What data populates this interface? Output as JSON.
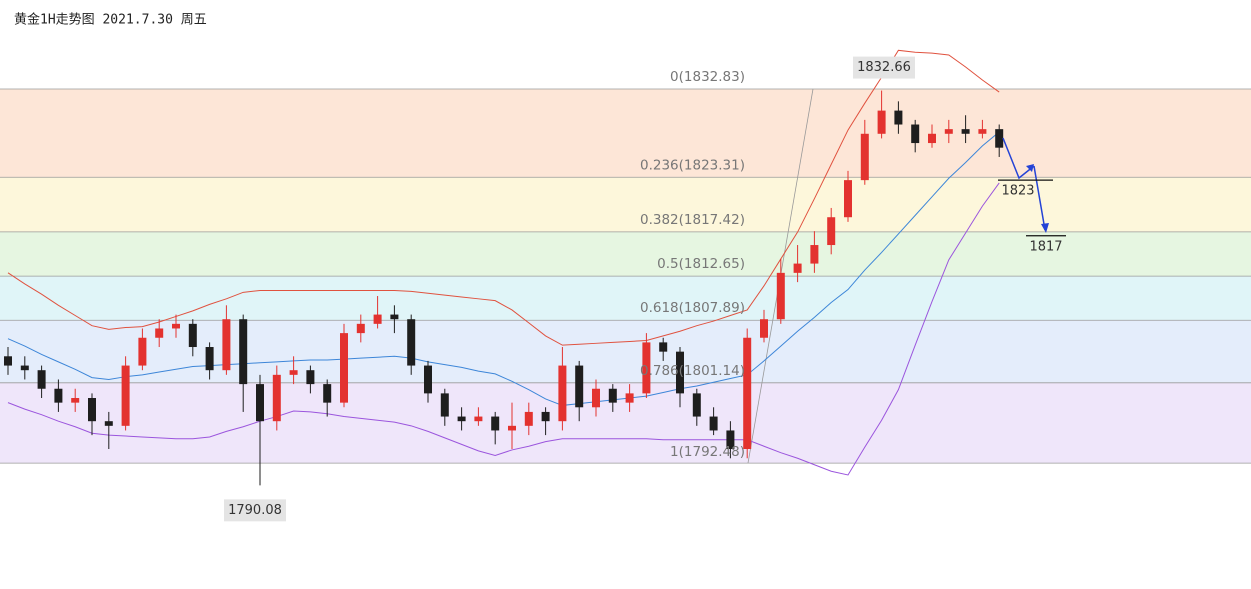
{
  "chart_data": {
    "type": "candlestick",
    "title": "黄金1H走势图 2021.7.30 周五",
    "ylim": [
      1778.9,
      1842.43
    ],
    "up_color": "#e3322f",
    "down_color": "#1e1e1e",
    "open": [
      1804,
      1803,
      1802.5,
      1800.5,
      1799,
      1799.5,
      1797,
      1796.5,
      1803,
      1806,
      1807,
      1807.5,
      1805,
      1802.5,
      1808,
      1801,
      1797,
      1802,
      1802.5,
      1801,
      1799,
      1806.5,
      1807.5,
      1808.5,
      1808,
      1803,
      1800,
      1797.5,
      1797,
      1797.5,
      1796,
      1796.5,
      1798,
      1797,
      1803,
      1798.5,
      1800.5,
      1799,
      1800,
      1805.5,
      1804.5,
      1800,
      1797.5,
      1796,
      1794,
      1806,
      1808,
      1813,
      1814,
      1816,
      1819,
      1823,
      1828,
      1830.5,
      1829,
      1827,
      1828,
      1828.5,
      1828,
      1828.5
    ],
    "high": [
      1805,
      1804,
      1803,
      1801.5,
      1800.5,
      1800,
      1798,
      1804,
      1807,
      1808,
      1808.5,
      1808,
      1805.5,
      1809.5,
      1808.5,
      1802,
      1803,
      1804,
      1803,
      1801.5,
      1807.5,
      1808.5,
      1810.5,
      1809.5,
      1808.5,
      1803.5,
      1800.5,
      1798.5,
      1798.5,
      1798,
      1799,
      1799,
      1798.5,
      1805,
      1803.5,
      1801.5,
      1801,
      1801,
      1806.5,
      1806,
      1805,
      1800.5,
      1798.5,
      1797,
      1807,
      1809,
      1814.5,
      1816,
      1817.5,
      1820,
      1824,
      1829.5,
      1832.66,
      1831.5,
      1829.5,
      1829,
      1829.5,
      1830,
      1829.5,
      1829
    ],
    "low": [
      1802,
      1801.5,
      1799.5,
      1798,
      1798,
      1795.5,
      1794,
      1796,
      1802.5,
      1805,
      1806,
      1804,
      1801.5,
      1802,
      1798,
      1790.08,
      1796,
      1801,
      1800,
      1797.5,
      1798.5,
      1805.5,
      1807,
      1806.5,
      1802,
      1799,
      1796.5,
      1796,
      1796.5,
      1794.5,
      1794,
      1795.5,
      1795.5,
      1796,
      1797,
      1797.5,
      1798,
      1798,
      1799.5,
      1803.5,
      1798.5,
      1796.5,
      1795.5,
      1793,
      1793,
      1805.5,
      1807.5,
      1812,
      1813,
      1815,
      1818.5,
      1822.5,
      1827.5,
      1828,
      1826,
      1826.5,
      1827,
      1827,
      1827.5,
      1825.5
    ],
    "close": [
      1803,
      1802.5,
      1800.5,
      1799,
      1799.5,
      1797,
      1796.5,
      1803,
      1806,
      1807,
      1807.5,
      1805,
      1802.5,
      1808,
      1801,
      1797,
      1802,
      1802.5,
      1801,
      1799,
      1806.5,
      1807.5,
      1808.5,
      1808,
      1803,
      1800,
      1797.5,
      1797,
      1797.5,
      1796,
      1796.5,
      1798,
      1797,
      1803,
      1798.5,
      1800.5,
      1799,
      1800,
      1805.5,
      1804.5,
      1800,
      1797.5,
      1796,
      1794,
      1806,
      1808,
      1813,
      1814,
      1816,
      1819,
      1823,
      1828,
      1830.5,
      1829,
      1827,
      1828,
      1828.5,
      1828,
      1828.5,
      1826.5
    ],
    "bands": [
      {
        "color": "#e0523f",
        "values": [
          1813,
          1811.8,
          1810.7,
          1809.5,
          1808.4,
          1807.3,
          1806.9,
          1807.1,
          1807.2,
          1807.7,
          1808.3,
          1808.9,
          1809.6,
          1810.2,
          1810.9,
          1811.1,
          1811.1,
          1811.1,
          1811.1,
          1811.1,
          1811.1,
          1811.1,
          1811.1,
          1811.1,
          1811,
          1810.8,
          1810.6,
          1810.4,
          1810.2,
          1810,
          1809,
          1807.6,
          1806.2,
          1805.2,
          1805.3,
          1805.4,
          1805.5,
          1805.6,
          1805.7,
          1806.2,
          1806.7,
          1807.3,
          1807.8,
          1808.4,
          1809,
          1811.6,
          1814.5,
          1817.4,
          1821,
          1824.7,
          1828.4,
          1831.3,
          1834.1,
          1837,
          1836.8,
          1836.7,
          1836.5,
          1835.2,
          1833.8,
          1832.5
        ]
      },
      {
        "color": "#3d86d8",
        "values": [
          1805.9,
          1805.1,
          1804.2,
          1803.4,
          1802.6,
          1801.7,
          1801.5,
          1801.8,
          1802,
          1802.3,
          1802.6,
          1802.9,
          1803,
          1803.1,
          1803.2,
          1803.3,
          1803.4,
          1803.5,
          1803.6,
          1803.6,
          1803.7,
          1803.8,
          1803.9,
          1804,
          1803.8,
          1803.4,
          1803.1,
          1802.8,
          1802.4,
          1802.1,
          1801.3,
          1800.4,
          1799.4,
          1798.7,
          1798.9,
          1799.1,
          1799.3,
          1799.5,
          1799.7,
          1800.1,
          1800.5,
          1800.8,
          1801.2,
          1801.6,
          1802,
          1803.5,
          1805.1,
          1806.7,
          1808.2,
          1809.8,
          1811.2,
          1813.3,
          1815.2,
          1817.2,
          1819.2,
          1821.2,
          1823.2,
          1824.9,
          1826.7,
          1828.2
        ]
      },
      {
        "color": "#9b55dd",
        "values": [
          1799,
          1798.3,
          1797.7,
          1797,
          1796.4,
          1795.7,
          1795.5,
          1795.4,
          1795.3,
          1795.2,
          1795.1,
          1795.1,
          1795.3,
          1795.9,
          1796.4,
          1797,
          1797.5,
          1798.1,
          1798,
          1797.8,
          1797.5,
          1797.3,
          1797.1,
          1796.9,
          1796.5,
          1795.9,
          1795.2,
          1794.5,
          1793.8,
          1793.3,
          1793.9,
          1794.3,
          1794.8,
          1795.1,
          1795.1,
          1795.1,
          1795.1,
          1795.1,
          1795.1,
          1795,
          1795,
          1795,
          1795,
          1795,
          1795,
          1794.3,
          1793.6,
          1793,
          1792.3,
          1791.6,
          1791.2,
          1794.2,
          1797.1,
          1800.4,
          1805.2,
          1809.9,
          1814.4,
          1817.3,
          1820.2,
          1822.7
        ]
      }
    ],
    "fib_levels": [
      {
        "value": 1832.83,
        "label": "0(1832.83)"
      },
      {
        "value": 1823.31,
        "label": "0.236(1823.31)"
      },
      {
        "value": 1817.42,
        "label": "0.382(1817.42)"
      },
      {
        "value": 1812.65,
        "label": "0.5(1812.65)"
      },
      {
        "value": 1807.89,
        "label": "0.618(1807.89)"
      },
      {
        "value": 1801.14,
        "label": "0.786(1801.14)"
      },
      {
        "value": 1792.48,
        "label": "1(1792.48)"
      }
    ],
    "zone_colors": [
      "#fde6d7",
      "#fdf7db",
      "#e6f6e1",
      "#e0f5f8",
      "#e4edfb",
      "#efe6fa"
    ],
    "peak": 1832.66,
    "trough": 1790.08,
    "targets": [
      1823,
      1817
    ]
  }
}
